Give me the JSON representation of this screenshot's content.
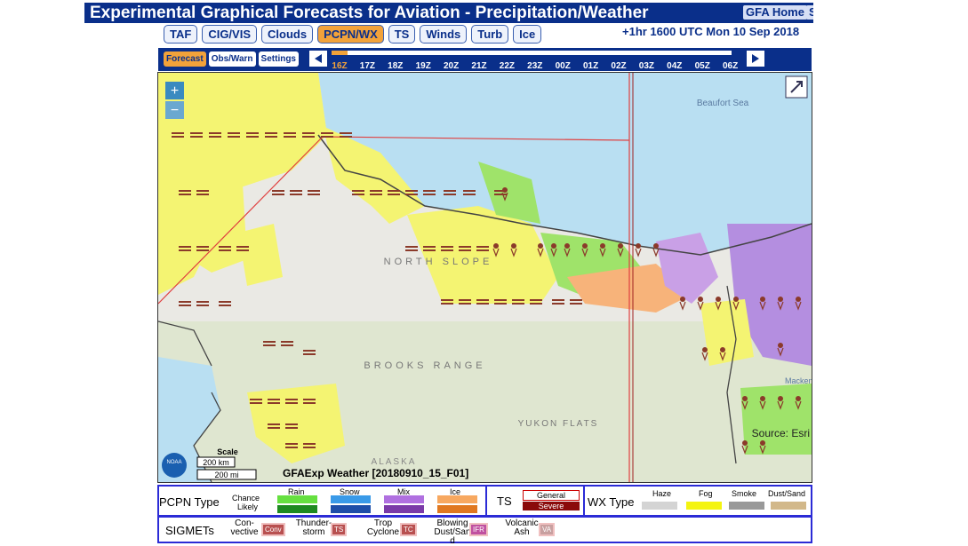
{
  "header": {
    "title": "Experimental Graphical Forecasts for Aviation - Precipitation/Weather",
    "home": "GFA Home",
    "extra": "S"
  },
  "tabs": [
    "TAF",
    "CIG/VIS",
    "Clouds",
    "PCPN/WX",
    "TS",
    "Winds",
    "Turb",
    "Ice"
  ],
  "status": "+1hr 1600 UTC Mon 10 Sep 2018",
  "subtabs": [
    "Forecast",
    "Obs/Warn",
    "Settings"
  ],
  "timeline": [
    "16Z",
    "17Z",
    "18Z",
    "19Z",
    "20Z",
    "21Z",
    "22Z",
    "23Z",
    "00Z",
    "01Z",
    "02Z",
    "03Z",
    "04Z",
    "05Z",
    "06Z"
  ],
  "map": {
    "sea": "Beaufort Sea",
    "north_slope": "NORTH SLOPE",
    "brooks": "BROOKS RANGE",
    "yukon": "YUKON FLATS",
    "alaska": "ALASKA",
    "macken": "Macken",
    "source": "Source: Esri",
    "scale": "Scale",
    "km": "200 km",
    "mi": "200 mi",
    "product": "GFAExp Weather [20180910_15_F01]",
    "zoom_in": "+",
    "zoom_out": "−",
    "noaa": "NOAA"
  },
  "legend": {
    "pcpn": "PCPN Type",
    "chance": "Chance",
    "likely": "Likely",
    "rain": "Rain",
    "snow": "Snow",
    "mix": "Mix",
    "ice": "Ice",
    "ts": "TS",
    "general": "General",
    "severe": "Severe",
    "wx": "WX Type",
    "haze": "Haze",
    "fog": "Fog",
    "smoke": "Smoke",
    "dust": "Dust/Sand",
    "sigmets": "SIGMETs",
    "items": [
      {
        "name": "Con-vective",
        "code": "Conv"
      },
      {
        "name": "Thunder-storm",
        "code": "TS"
      },
      {
        "name": "Trop Cyclone",
        "code": "TC"
      },
      {
        "name": "Blowing Dust/Sand",
        "code": "IFR"
      },
      {
        "name": "Volcanic Ash",
        "code": "VA"
      }
    ]
  }
}
